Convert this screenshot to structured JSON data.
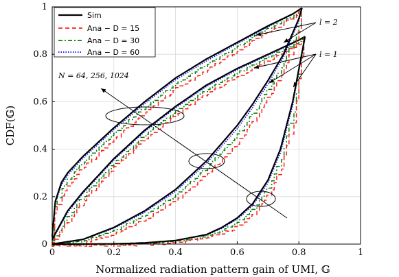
{
  "chart_data": {
    "type": "line",
    "xlabel": "Normalized radiation pattern gain of UMI, 𝔾",
    "ylabel": "CDF(𝔾)",
    "xlim": [
      0,
      1
    ],
    "ylim": [
      0,
      1
    ],
    "xticks": [
      "0",
      "0.2",
      "0.4",
      "0.6",
      "0.8",
      "1"
    ],
    "yticks": [
      "0",
      "0.2",
      "0.4",
      "0.6",
      "0.8",
      "1"
    ],
    "grid": true,
    "legend_position": "top-left",
    "legend": [
      {
        "label": "Sim",
        "color": "#000000",
        "dash": "solid"
      },
      {
        "label": "Ana − D = 15",
        "color": "#ff1f1f",
        "dash": "dashed"
      },
      {
        "label": "Ana − D = 30",
        "color": "#008000",
        "dash": "dashdot"
      },
      {
        "label": "Ana − D = 60",
        "color": "#0000ff",
        "dash": "dotted"
      }
    ],
    "annotations": {
      "l2": "l = 2",
      "l1": "l = 1",
      "n": "N = 64, 256, 1024"
    },
    "groups": [
      {
        "group": "l = 2, upper",
        "sim": {
          "x": [
            0,
            0.01,
            0.03,
            0.05,
            0.1,
            0.15,
            0.2,
            0.3,
            0.4,
            0.5,
            0.6,
            0.7,
            0.78,
            0.81
          ],
          "y": [
            0.03,
            0.18,
            0.26,
            0.3,
            0.37,
            0.43,
            0.49,
            0.6,
            0.7,
            0.78,
            0.85,
            0.92,
            0.97,
            0.995
          ]
        },
        "ana": {
          "x": [
            0,
            0.01,
            0.03,
            0.05,
            0.1,
            0.15,
            0.2,
            0.3,
            0.4,
            0.5,
            0.6,
            0.7,
            0.78,
            0.81
          ],
          "y": [
            0.02,
            0.14,
            0.21,
            0.25,
            0.33,
            0.39,
            0.45,
            0.56,
            0.66,
            0.74,
            0.82,
            0.9,
            0.96,
            0.995
          ]
        }
      },
      {
        "group": "l = 1, upper",
        "sim": {
          "x": [
            0,
            0.05,
            0.1,
            0.2,
            0.3,
            0.4,
            0.5,
            0.6,
            0.7,
            0.8,
            0.82
          ],
          "y": [
            0.02,
            0.14,
            0.22,
            0.36,
            0.48,
            0.58,
            0.67,
            0.74,
            0.8,
            0.86,
            0.875
          ]
        },
        "ana": {
          "x": [
            0,
            0.05,
            0.1,
            0.2,
            0.3,
            0.4,
            0.5,
            0.6,
            0.7,
            0.8,
            0.82
          ],
          "y": [
            0.01,
            0.1,
            0.19,
            0.33,
            0.45,
            0.55,
            0.64,
            0.71,
            0.78,
            0.85,
            0.875
          ]
        }
      },
      {
        "group": "l = 2, lower",
        "sim": {
          "x": [
            0,
            0.1,
            0.2,
            0.3,
            0.4,
            0.5,
            0.6,
            0.65,
            0.7,
            0.75,
            0.8,
            0.81
          ],
          "y": [
            0,
            0.02,
            0.07,
            0.14,
            0.23,
            0.35,
            0.5,
            0.59,
            0.69,
            0.8,
            0.95,
            0.995
          ]
        },
        "ana": {
          "x": [
            0,
            0.1,
            0.2,
            0.3,
            0.4,
            0.5,
            0.6,
            0.65,
            0.7,
            0.75,
            0.8,
            0.81
          ],
          "y": [
            0,
            0.01,
            0.05,
            0.11,
            0.19,
            0.3,
            0.43,
            0.52,
            0.62,
            0.74,
            0.9,
            0.995
          ]
        }
      },
      {
        "group": "l = 1, lower",
        "sim": {
          "x": [
            0,
            0.2,
            0.3,
            0.4,
            0.5,
            0.55,
            0.6,
            0.65,
            0.7,
            0.74,
            0.78,
            0.82
          ],
          "y": [
            0,
            0.001,
            0.005,
            0.015,
            0.04,
            0.07,
            0.11,
            0.17,
            0.27,
            0.4,
            0.6,
            0.875
          ]
        },
        "ana": {
          "x": [
            0,
            0.2,
            0.3,
            0.4,
            0.5,
            0.55,
            0.6,
            0.65,
            0.7,
            0.74,
            0.78,
            0.82
          ],
          "y": [
            0,
            0,
            0.003,
            0.01,
            0.03,
            0.05,
            0.08,
            0.13,
            0.21,
            0.32,
            0.52,
            0.875
          ]
        }
      }
    ]
  }
}
